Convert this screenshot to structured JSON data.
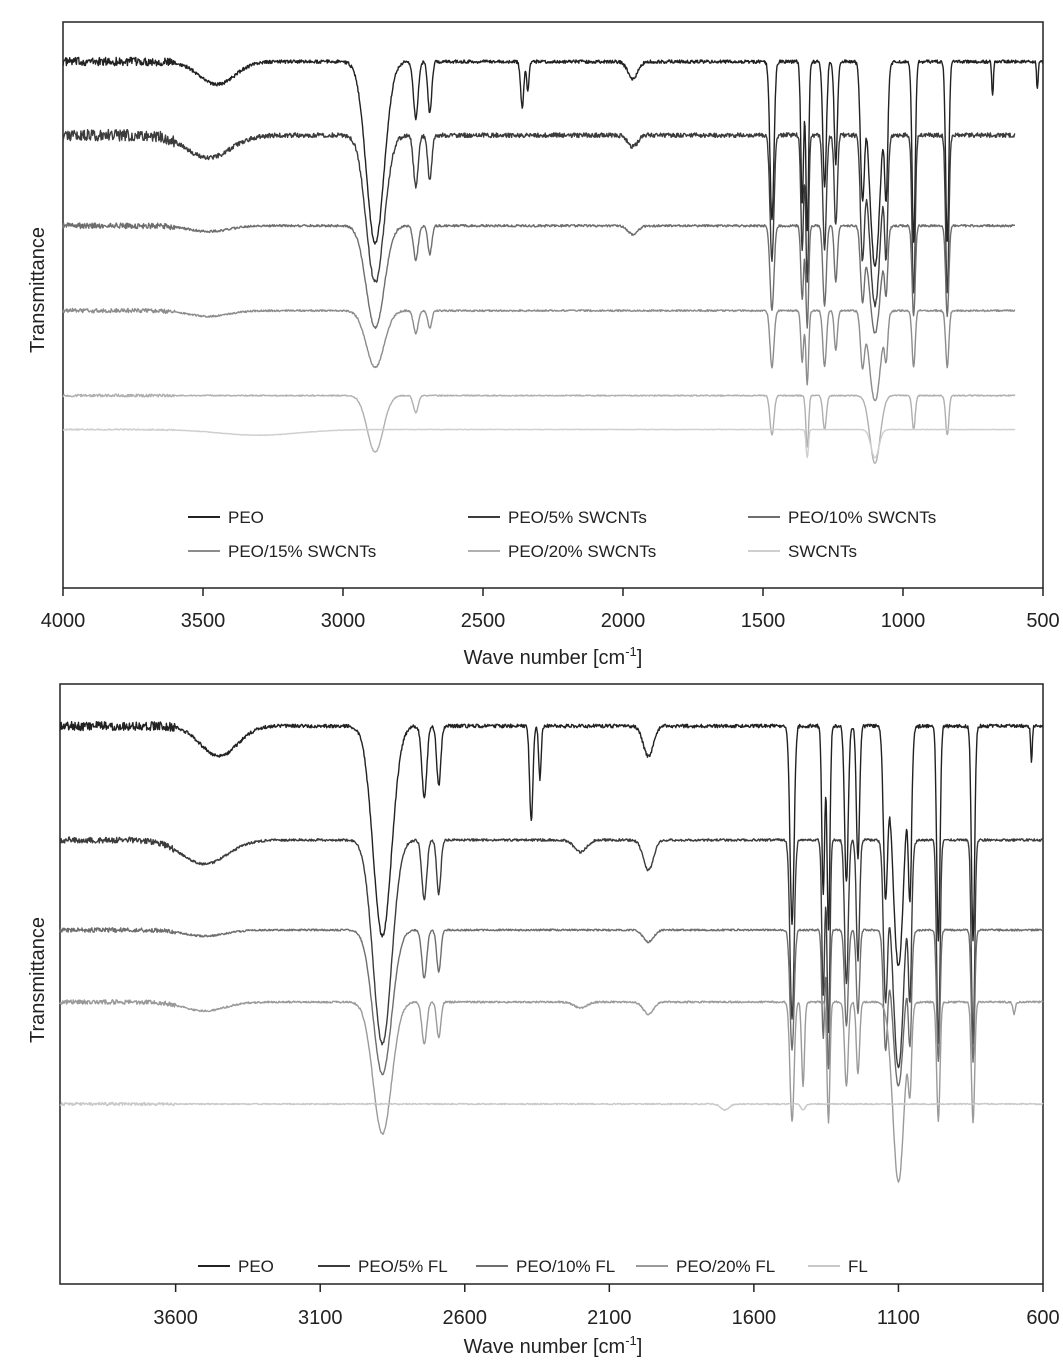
{
  "chart_data": [
    {
      "type": "line",
      "title": "",
      "xlabel": "Wave number [cm",
      "xlabel_sup": "-1",
      "xlabel_end": "]",
      "ylabel": "Transmittance",
      "xlim": [
        4000,
        500
      ],
      "x_ticks": [
        4000,
        3500,
        3000,
        2500,
        2000,
        1500,
        1000,
        500
      ],
      "x_tick_labels": [
        "4000",
        "3500",
        "3000",
        "2500",
        "2000",
        "1500",
        "1000",
        "500"
      ],
      "legend": "bottom, inside, 3 columns",
      "grid": false,
      "series": [
        {
          "name": "PEO",
          "color": "#222222",
          "range": [
            4000,
            500
          ],
          "baseline": 0.93,
          "noise": 0.006,
          "peaks": [
            [
              3450,
              0.04,
              90
            ],
            [
              2885,
              0.32,
              45
            ],
            [
              2740,
              0.1,
              12
            ],
            [
              2690,
              0.09,
              10
            ],
            [
              2360,
              0.08,
              8
            ],
            [
              2340,
              0.05,
              6
            ],
            [
              1965,
              0.03,
              25
            ],
            [
              1468,
              0.28,
              10
            ],
            [
              1360,
              0.25,
              7
            ],
            [
              1342,
              0.3,
              7
            ],
            [
              1280,
              0.22,
              9
            ],
            [
              1240,
              0.18,
              8
            ],
            [
              1145,
              0.22,
              10
            ],
            [
              1100,
              0.36,
              28
            ],
            [
              1060,
              0.2,
              8
            ],
            [
              962,
              0.32,
              8
            ],
            [
              842,
              0.32,
              8
            ],
            [
              680,
              0.06,
              4
            ],
            [
              520,
              0.05,
              4
            ]
          ]
        },
        {
          "name": "PEO/5% SWCNTs",
          "color": "#3c3c3c",
          "range": [
            4000,
            600
          ],
          "baseline": 0.8,
          "noise": 0.008,
          "peaks": [
            [
              3480,
              0.04,
              110
            ],
            [
              2885,
              0.26,
              45
            ],
            [
              2740,
              0.09,
              12
            ],
            [
              2690,
              0.08,
              10
            ],
            [
              1965,
              0.02,
              25
            ],
            [
              1468,
              0.22,
              10
            ],
            [
              1360,
              0.2,
              7
            ],
            [
              1342,
              0.26,
              7
            ],
            [
              1280,
              0.2,
              9
            ],
            [
              1240,
              0.16,
              8
            ],
            [
              1145,
              0.2,
              10
            ],
            [
              1100,
              0.3,
              28
            ],
            [
              1060,
              0.18,
              8
            ],
            [
              962,
              0.28,
              8
            ],
            [
              842,
              0.28,
              8
            ]
          ]
        },
        {
          "name": "PEO/10% SWCNTs",
          "color": "#6e6e6e",
          "range": [
            4000,
            600
          ],
          "baseline": 0.64,
          "noise": 0.004,
          "peaks": [
            [
              3480,
              0.01,
              100
            ],
            [
              2885,
              0.18,
              45
            ],
            [
              2740,
              0.06,
              12
            ],
            [
              2690,
              0.05,
              10
            ],
            [
              1965,
              0.015,
              25
            ],
            [
              1468,
              0.15,
              10
            ],
            [
              1360,
              0.13,
              7
            ],
            [
              1342,
              0.18,
              7
            ],
            [
              1280,
              0.14,
              9
            ],
            [
              1240,
              0.1,
              8
            ],
            [
              1145,
              0.12,
              10
            ],
            [
              1100,
              0.19,
              28
            ],
            [
              1060,
              0.1,
              8
            ],
            [
              962,
              0.16,
              8
            ],
            [
              842,
              0.16,
              8
            ]
          ]
        },
        {
          "name": "PEO/15% SWCNTs",
          "color": "#8c8c8c",
          "range": [
            4000,
            600
          ],
          "baseline": 0.49,
          "noise": 0.003,
          "peaks": [
            [
              3480,
              0.01,
              100
            ],
            [
              2885,
              0.1,
              45
            ],
            [
              2740,
              0.04,
              12
            ],
            [
              2690,
              0.03,
              10
            ],
            [
              1468,
              0.1,
              10
            ],
            [
              1360,
              0.09,
              7
            ],
            [
              1342,
              0.13,
              7
            ],
            [
              1280,
              0.1,
              9
            ],
            [
              1240,
              0.07,
              8
            ],
            [
              1145,
              0.09,
              10
            ],
            [
              1100,
              0.16,
              28
            ],
            [
              1060,
              0.07,
              8
            ],
            [
              962,
              0.1,
              8
            ],
            [
              842,
              0.1,
              8
            ]
          ]
        },
        {
          "name": "PEO/20% SWCNTs",
          "color": "#b0b0b0",
          "range": [
            4000,
            600
          ],
          "baseline": 0.34,
          "noise": 0.002,
          "peaks": [
            [
              2885,
              0.1,
              40
            ],
            [
              2740,
              0.03,
              12
            ],
            [
              1468,
              0.07,
              10
            ],
            [
              1342,
              0.09,
              7
            ],
            [
              1280,
              0.06,
              9
            ],
            [
              1100,
              0.12,
              26
            ],
            [
              962,
              0.06,
              8
            ],
            [
              842,
              0.07,
              8
            ]
          ]
        },
        {
          "name": "SWCNTs",
          "color": "#cfcfcf",
          "range": [
            4000,
            600
          ],
          "baseline": 0.28,
          "noise": 0.001,
          "peaks": [
            [
              3300,
              0.01,
              200
            ],
            [
              1342,
              0.05,
              6
            ],
            [
              1100,
              0.05,
              20
            ]
          ]
        }
      ]
    },
    {
      "type": "line",
      "title": "",
      "xlabel": "Wave number [cm",
      "xlabel_sup": "-1",
      "xlabel_end": "]",
      "ylabel": "Transmittance",
      "xlim": [
        4000,
        600
      ],
      "x_ticks": [
        3600,
        3100,
        2600,
        2100,
        1600,
        1100,
        600
      ],
      "x_tick_labels": [
        "3600",
        "3100",
        "2600",
        "2100",
        "1600",
        "1100",
        "600"
      ],
      "legend": "bottom, inside, 1 row",
      "grid": false,
      "series": [
        {
          "name": "PEO",
          "color": "#222222",
          "range": [
            4000,
            600
          ],
          "baseline": 0.93,
          "noise": 0.006,
          "peaks": [
            [
              3450,
              0.05,
              90
            ],
            [
              2885,
              0.35,
              45
            ],
            [
              2740,
              0.12,
              12
            ],
            [
              2690,
              0.1,
              10
            ],
            [
              2370,
              0.16,
              8
            ],
            [
              2340,
              0.09,
              6
            ],
            [
              1965,
              0.05,
              25
            ],
            [
              1468,
              0.33,
              10
            ],
            [
              1360,
              0.28,
              7
            ],
            [
              1342,
              0.34,
              7
            ],
            [
              1280,
              0.26,
              9
            ],
            [
              1240,
              0.22,
              8
            ],
            [
              1145,
              0.26,
              10
            ],
            [
              1100,
              0.4,
              28
            ],
            [
              1060,
              0.24,
              8
            ],
            [
              962,
              0.36,
              8
            ],
            [
              842,
              0.36,
              8
            ],
            [
              640,
              0.06,
              4
            ]
          ]
        },
        {
          "name": "PEO/5% FL",
          "color": "#3c3c3c",
          "range": [
            4000,
            600
          ],
          "baseline": 0.74,
          "noise": 0.004,
          "peaks": [
            [
              3500,
              0.04,
              110
            ],
            [
              2885,
              0.34,
              45
            ],
            [
              2740,
              0.1,
              12
            ],
            [
              2690,
              0.09,
              10
            ],
            [
              2200,
              0.02,
              30
            ],
            [
              1965,
              0.05,
              25
            ],
            [
              1468,
              0.3,
              10
            ],
            [
              1360,
              0.26,
              7
            ],
            [
              1342,
              0.32,
              7
            ],
            [
              1280,
              0.24,
              9
            ],
            [
              1240,
              0.2,
              8
            ],
            [
              1145,
              0.24,
              10
            ],
            [
              1100,
              0.38,
              28
            ],
            [
              1060,
              0.22,
              8
            ],
            [
              962,
              0.34,
              8
            ],
            [
              842,
              0.34,
              8
            ]
          ]
        },
        {
          "name": "PEO/10% FL",
          "color": "#6e6e6e",
          "range": [
            4000,
            600
          ],
          "baseline": 0.59,
          "noise": 0.003,
          "peaks": [
            [
              3500,
              0.01,
              100
            ],
            [
              2885,
              0.24,
              45
            ],
            [
              2740,
              0.08,
              12
            ],
            [
              2690,
              0.07,
              10
            ],
            [
              1965,
              0.02,
              25
            ],
            [
              1468,
              0.2,
              10
            ],
            [
              1360,
              0.18,
              7
            ],
            [
              1342,
              0.23,
              7
            ],
            [
              1280,
              0.16,
              9
            ],
            [
              1240,
              0.14,
              8
            ],
            [
              1145,
              0.18,
              10
            ],
            [
              1100,
              0.26,
              28
            ],
            [
              1060,
              0.16,
              8
            ],
            [
              962,
              0.22,
              8
            ],
            [
              842,
              0.22,
              8
            ]
          ]
        },
        {
          "name": "PEO/20% FL",
          "color": "#9a9a9a",
          "range": [
            4000,
            600
          ],
          "baseline": 0.47,
          "noise": 0.003,
          "peaks": [
            [
              3500,
              0.015,
              100
            ],
            [
              2885,
              0.22,
              45
            ],
            [
              2740,
              0.07,
              12
            ],
            [
              2690,
              0.06,
              10
            ],
            [
              2200,
              0.01,
              30
            ],
            [
              1965,
              0.02,
              25
            ],
            [
              1468,
              0.2,
              10
            ],
            [
              1430,
              0.14,
              7
            ],
            [
              1342,
              0.2,
              7
            ],
            [
              1280,
              0.14,
              9
            ],
            [
              1240,
              0.12,
              8
            ],
            [
              1100,
              0.3,
              28
            ],
            [
              1060,
              0.12,
              8
            ],
            [
              962,
              0.2,
              8
            ],
            [
              842,
              0.2,
              8
            ],
            [
              700,
              0.02,
              6
            ]
          ]
        },
        {
          "name": "FL",
          "color": "#c8c8c8",
          "range": [
            4000,
            600
          ],
          "baseline": 0.3,
          "noise": 0.002,
          "peaks": [
            [
              1700,
              0.01,
              20
            ],
            [
              1430,
              0.01,
              10
            ]
          ]
        }
      ]
    }
  ]
}
